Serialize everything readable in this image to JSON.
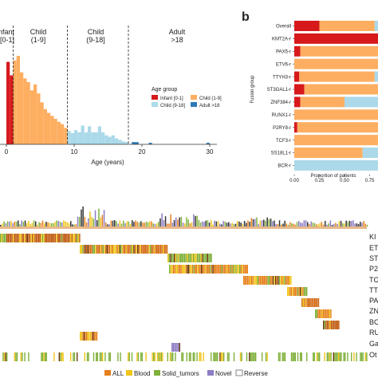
{
  "colors": {
    "infant": "#d7191c",
    "child_1_9": "#fdae61",
    "child_9_18": "#abd9e9",
    "adult": "#2c7bb6",
    "all": "#e6801c",
    "blood": "#f0c419",
    "solid": "#7fb03a",
    "novel": "#8e7cc3",
    "reverse": "#ffffff"
  },
  "panel_a": {
    "sections": [
      "Infant\n[0-1]",
      "Child\n(1-9]",
      "Child\n(9-18]",
      "Adult\n>18"
    ],
    "section_labels": [
      {
        "top": "nfant",
        "bottom": "[0-1]"
      },
      {
        "top": "Child",
        "bottom": "(1-9]"
      },
      {
        "top": "Child",
        "bottom": "(9-18]"
      },
      {
        "top": "Adult",
        "bottom": ">18"
      }
    ],
    "legend_title": "Age group",
    "legend": [
      "Infant [0-1]",
      "Child (1-9]",
      "Child (9-18]",
      "Adult >18"
    ],
    "xlabel": "Age (years)"
  },
  "panel_b": {
    "label": "b",
    "ylabel": "Fusion group",
    "xlabel": "Proportion of patients"
  },
  "panel_c": {
    "right_labels": [
      "KI",
      "ET",
      "ST",
      "P2",
      "TC",
      "TT",
      "PA",
      "ZN",
      "BC",
      "RU",
      "Ga",
      "Ot"
    ],
    "legend": [
      "ALL",
      "Blood",
      "Solid_tumors",
      "Novel",
      "Reverse"
    ]
  },
  "chart_data": [
    {
      "type": "bar",
      "title": "",
      "xlabel": "Age (years)",
      "ylabel": "",
      "xlim": [
        0,
        31
      ],
      "xticks": [
        "0",
        "10",
        "20",
        "30"
      ],
      "bins": [
        {
          "x": 0.0,
          "value": 110,
          "group": "Infant [0-1]"
        },
        {
          "x": 0.5,
          "value": 92,
          "group": "Infant [0-1]"
        },
        {
          "x": 1.0,
          "value": 112,
          "group": "Child (1-9]"
        },
        {
          "x": 1.5,
          "value": 118,
          "group": "Child (1-9]"
        },
        {
          "x": 2.0,
          "value": 96,
          "group": "Child (1-9]"
        },
        {
          "x": 2.5,
          "value": 88,
          "group": "Child (1-9]"
        },
        {
          "x": 3.0,
          "value": 83,
          "group": "Child (1-9]"
        },
        {
          "x": 3.5,
          "value": 72,
          "group": "Child (1-9]"
        },
        {
          "x": 4.0,
          "value": 80,
          "group": "Child (1-9]"
        },
        {
          "x": 4.5,
          "value": 68,
          "group": "Child (1-9]"
        },
        {
          "x": 5.0,
          "value": 56,
          "group": "Child (1-9]"
        },
        {
          "x": 5.5,
          "value": 47,
          "group": "Child (1-9]"
        },
        {
          "x": 6.0,
          "value": 42,
          "group": "Child (1-9]"
        },
        {
          "x": 6.5,
          "value": 38,
          "group": "Child (1-9]"
        },
        {
          "x": 7.0,
          "value": 34,
          "group": "Child (1-9]"
        },
        {
          "x": 7.5,
          "value": 30,
          "group": "Child (1-9]"
        },
        {
          "x": 8.0,
          "value": 27,
          "group": "Child (1-9]"
        },
        {
          "x": 8.5,
          "value": 22,
          "group": "Child (1-9]"
        },
        {
          "x": 9.0,
          "value": 18,
          "group": "Child (9-18]"
        },
        {
          "x": 9.5,
          "value": 15,
          "group": "Child (9-18]"
        },
        {
          "x": 10.0,
          "value": 19,
          "group": "Child (9-18]"
        },
        {
          "x": 10.5,
          "value": 16,
          "group": "Child (9-18]"
        },
        {
          "x": 11.0,
          "value": 25,
          "group": "Child (9-18]"
        },
        {
          "x": 11.5,
          "value": 16,
          "group": "Child (9-18]"
        },
        {
          "x": 12.0,
          "value": 24,
          "group": "Child (9-18]"
        },
        {
          "x": 12.5,
          "value": 16,
          "group": "Child (9-18]"
        },
        {
          "x": 13.0,
          "value": 16,
          "group": "Child (9-18]"
        },
        {
          "x": 13.5,
          "value": 24,
          "group": "Child (9-18]"
        },
        {
          "x": 14.0,
          "value": 16,
          "group": "Child (9-18]"
        },
        {
          "x": 14.5,
          "value": 12,
          "group": "Child (9-18]"
        },
        {
          "x": 15.0,
          "value": 10,
          "group": "Child (9-18]"
        },
        {
          "x": 15.5,
          "value": 12,
          "group": "Child (9-18]"
        },
        {
          "x": 16.0,
          "value": 8,
          "group": "Child (9-18]"
        },
        {
          "x": 16.5,
          "value": 6,
          "group": "Child (9-18]"
        },
        {
          "x": 17.0,
          "value": 4,
          "group": "Child (9-18]"
        },
        {
          "x": 17.5,
          "value": 3,
          "group": "Child (9-18]"
        },
        {
          "x": 18.5,
          "value": 3,
          "group": "Adult >18"
        },
        {
          "x": 19.0,
          "value": 3,
          "group": "Adult >18"
        },
        {
          "x": 21.0,
          "value": 2,
          "group": "Adult >18"
        },
        {
          "x": 29.5,
          "value": 2,
          "group": "Adult >18"
        }
      ],
      "cutoffs": [
        1,
        9,
        18
      ]
    },
    {
      "type": "bar",
      "orientation": "horizontal",
      "stacked": true,
      "xlabel": "Proportion of patients",
      "ylabel": "Fusion group",
      "xlim": [
        0,
        1
      ],
      "xticks": [
        "0.00",
        "0.25",
        "0.50",
        "0.75"
      ],
      "categories": [
        "Overall",
        "KMT2A-r",
        "PAX5-r",
        "ETV6-r",
        "TTYH3-r",
        "ST3GAL1-r",
        "ZNF384-r",
        "RUNX1-r",
        "P2RY8-r",
        "TCF3-r",
        "SS18L1-r",
        "BCR-r"
      ],
      "series": [
        {
          "name": "Infant [0-1]",
          "values": [
            0.25,
            0.97,
            0.06,
            0.0,
            0.05,
            0.1,
            0.06,
            0.0,
            0.03,
            0.0,
            0.0,
            0.0
          ]
        },
        {
          "name": "Child (1-9]",
          "values": [
            0.55,
            0.02,
            0.8,
            0.92,
            0.75,
            0.76,
            0.44,
            0.9,
            0.87,
            0.92,
            0.68,
            0.0
          ]
        },
        {
          "name": "Child (9-18]",
          "values": [
            0.2,
            0.01,
            0.14,
            0.08,
            0.2,
            0.14,
            0.5,
            0.1,
            0.1,
            0.08,
            0.32,
            1.0
          ]
        }
      ]
    }
  ]
}
